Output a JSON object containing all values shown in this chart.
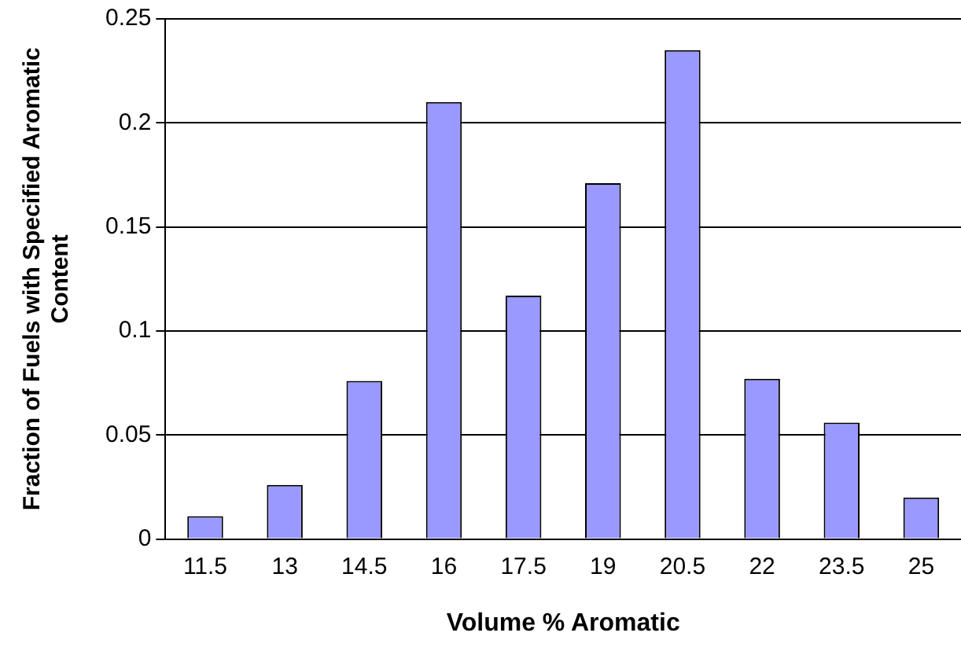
{
  "chart_data": {
    "type": "bar",
    "xlabel": "Volume % Aromatic",
    "ylabel": "Fraction of Fuels with Specified Aromatic Content",
    "categories": [
      "11.5",
      "13",
      "14.5",
      "16",
      "17.5",
      "19",
      "20.5",
      "22",
      "23.5",
      "25"
    ],
    "values": [
      0.011,
      0.026,
      0.076,
      0.21,
      0.117,
      0.171,
      0.235,
      0.077,
      0.056,
      0.02
    ],
    "color": "#9999ff",
    "ylim": [
      0,
      0.25
    ],
    "yticks": [
      0,
      0.05,
      0.1,
      0.15,
      0.2,
      0.25
    ],
    "grid": "y",
    "legend": false
  }
}
